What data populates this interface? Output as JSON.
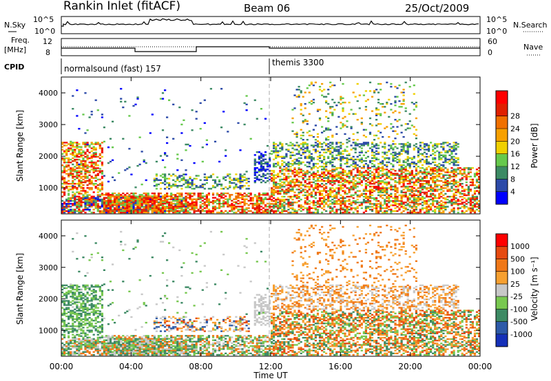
{
  "header": {
    "station": "Rankin Inlet (fitACF)",
    "beam": "Beam 06",
    "date": "25/Oct/2009"
  },
  "top_panels": {
    "nsky_label": "N.Sky",
    "nsky_ticks": [
      "10^5",
      "10^0"
    ],
    "nsearch_label": "N.Search",
    "nsearch_ticks": [
      "10^5",
      "10^0"
    ],
    "freq_label_1": "Freq.",
    "freq_label_2": "[MHz]",
    "freq_ticks": [
      "12",
      "8"
    ],
    "nave_label": "Nave",
    "nave_ticks": [
      "60",
      "0"
    ],
    "cpid_label": "CPID",
    "cpid_segments": [
      "normalsound (fast) 157",
      "themis 3300"
    ]
  },
  "chart_data": [
    {
      "type": "heatmap",
      "panel": "power",
      "ylabel": "Slant Range [km]",
      "ylim": [
        180,
        4500
      ],
      "yticks": [
        1000,
        2000,
        3000,
        4000
      ],
      "x_ticks": [
        "00:00",
        "04:00",
        "08:00",
        "12:00",
        "16:00",
        "20:00",
        "00:00"
      ],
      "colorbar_label": "Power [dB]",
      "colorbar_ticks": [
        "4",
        "8",
        "12",
        "16",
        "20",
        "24",
        "28"
      ],
      "colors": [
        "#0000ff",
        "#2c4aa8",
        "#3c8a64",
        "#66c94c",
        "#f0d000",
        "#f7a000",
        "#f07000",
        "#e02000",
        "#ff0000"
      ],
      "grid": false
    },
    {
      "type": "heatmap",
      "panel": "velocity",
      "ylabel": "Slant Range [km]",
      "ylim": [
        180,
        4500
      ],
      "yticks": [
        1000,
        2000,
        3000,
        4000
      ],
      "x_ticks": [
        "00:00",
        "04:00",
        "08:00",
        "12:00",
        "16:00",
        "20:00",
        "00:00"
      ],
      "xlabel": "Time UT",
      "colorbar_label": "Velocity [m s⁻¹]",
      "colorbar_ticks": [
        "1000",
        "500",
        "100",
        "25",
        "-25",
        "-100",
        "-500",
        "-1000"
      ],
      "colors": [
        "#1530b8",
        "#2d5aa8",
        "#3d8a64",
        "#78c850",
        "#c8c8c8",
        "#f7a030",
        "#f07818",
        "#e64a10",
        "#ff0000"
      ],
      "grid": false
    }
  ],
  "colors": {
    "power": [
      "#0000ff",
      "#2c4aa8",
      "#3c8a64",
      "#66c94c",
      "#f0d000",
      "#f7a000",
      "#f07000",
      "#e02000",
      "#ff0000"
    ],
    "velocity": [
      "#1530b8",
      "#2d5aa8",
      "#3d8a64",
      "#78c850",
      "#c8c8c8",
      "#f7a030",
      "#f07818",
      "#e64a10",
      "#ff0000"
    ]
  }
}
